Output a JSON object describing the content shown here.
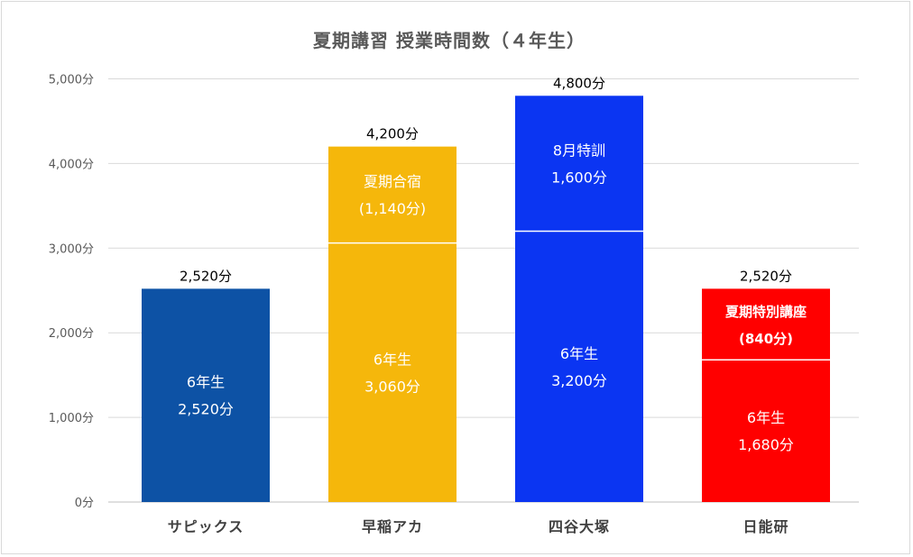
{
  "chart_data": {
    "type": "bar",
    "stacked": true,
    "title": "夏期講習 授業時間数（４年生）",
    "ylim": [
      0,
      5000
    ],
    "yticks": [
      "0分",
      "1,000分",
      "2,000分",
      "3,000分",
      "4,000分",
      "5,000分"
    ],
    "grid": true,
    "bars": [
      {
        "category": "サピックス",
        "total": 2520,
        "total_label": "2,520分",
        "color": "#0d52a5",
        "segments": [
          {
            "value": 2520,
            "lines": [
              "6年生",
              "2,520分"
            ],
            "bold": false
          }
        ]
      },
      {
        "category": "早稲アカ",
        "total": 4200,
        "total_label": "4,200分",
        "color": "#f5b70b",
        "segments": [
          {
            "value": 3060,
            "lines": [
              "6年生",
              "3,060分"
            ],
            "bold": false
          },
          {
            "value": 1140,
            "lines": [
              "夏期合宿",
              "(1,140分)"
            ],
            "bold": false
          }
        ]
      },
      {
        "category": "四谷大塚",
        "total": 4800,
        "total_label": "4,800分",
        "color": "#0b35f2",
        "segments": [
          {
            "value": 3200,
            "lines": [
              "6年生",
              "3,200分"
            ],
            "bold": false
          },
          {
            "value": 1600,
            "lines": [
              "8月特訓",
              "1,600分"
            ],
            "bold": false
          }
        ]
      },
      {
        "category": "日能研",
        "total": 2520,
        "total_label": "2,520分",
        "color": "#ff0000",
        "segments": [
          {
            "value": 1680,
            "lines": [
              "6年生",
              "1,680分"
            ],
            "bold": false
          },
          {
            "value": 840,
            "lines": [
              "夏期特別講座",
              "(840分)"
            ],
            "bold": true
          }
        ]
      }
    ]
  }
}
